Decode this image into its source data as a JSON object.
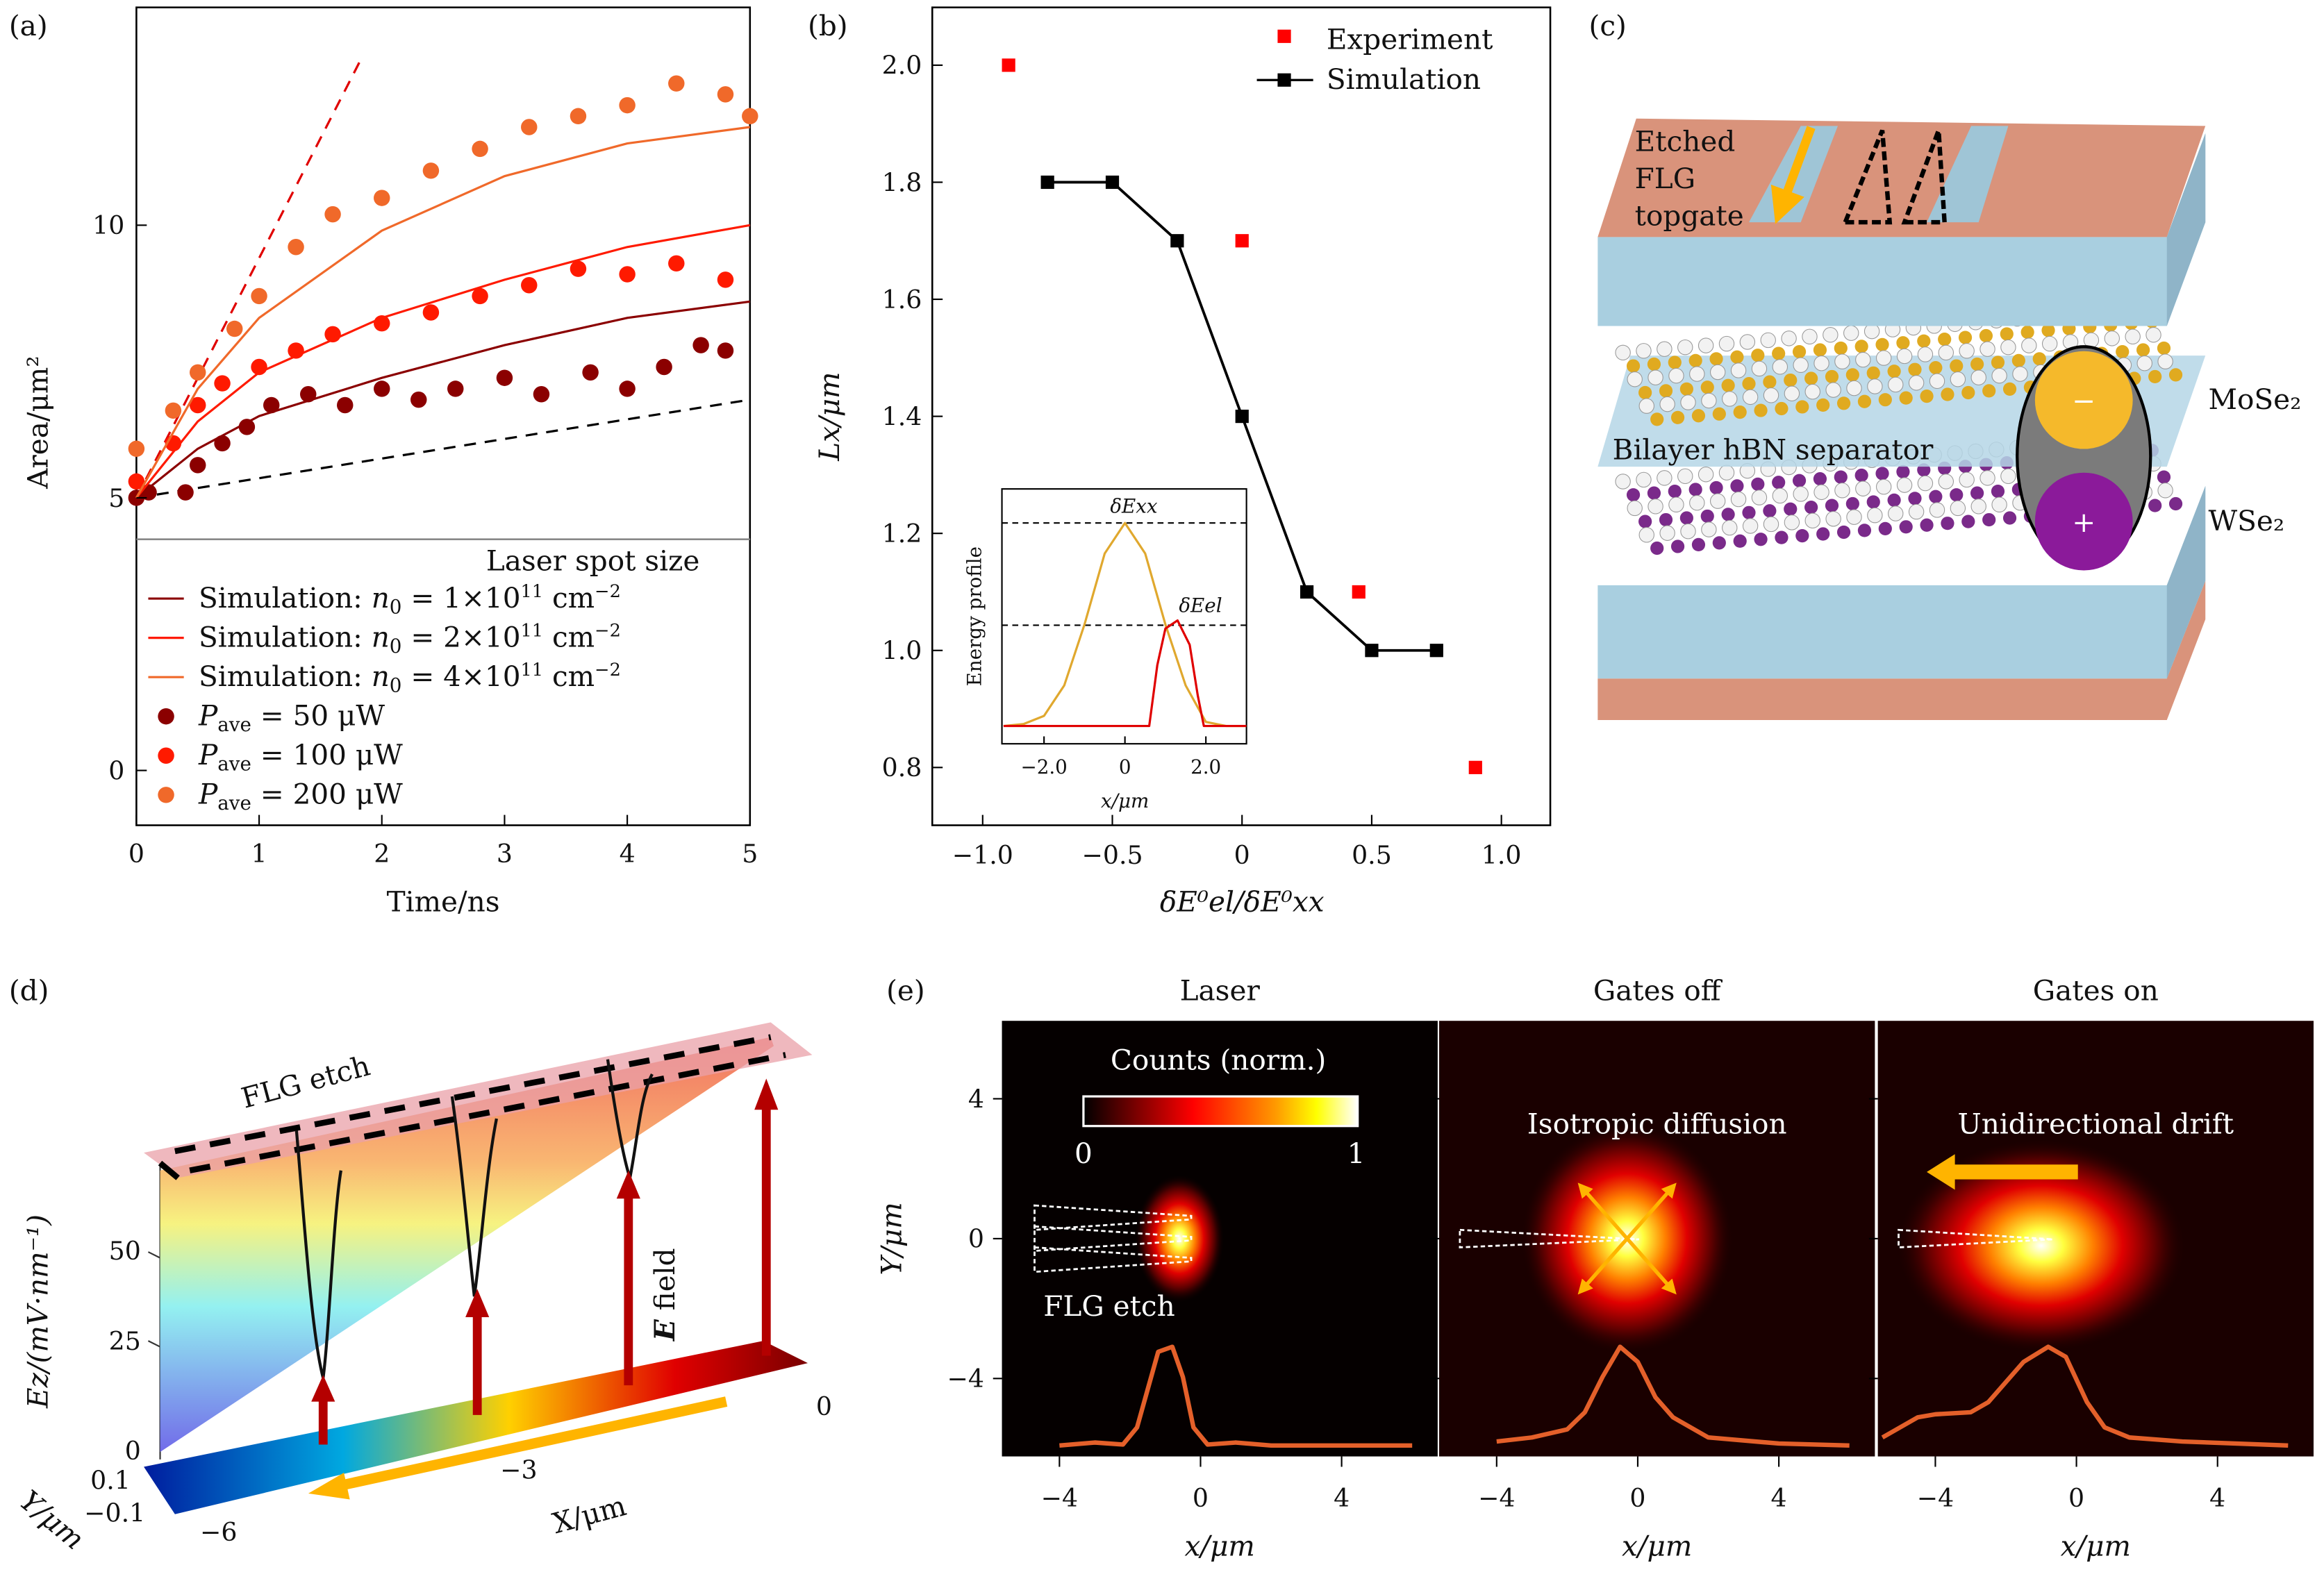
{
  "panels": {
    "a": "(a)",
    "b": "(b)",
    "c": "(c)",
    "d": "(d)",
    "e": "(e)"
  },
  "colors": {
    "p50": "#8b0000",
    "p100": "#ff1a00",
    "p200": "#f0692a",
    "experiment": "#ff0000",
    "simulation": "#000000",
    "inset_exciton": "#e0a82e",
    "inset_electron": "#e00000",
    "arrow": "#ffb400",
    "efield": "#b40000"
  },
  "chart_data": [
    {
      "id": "a",
      "type": "scatter",
      "xlabel": "Time/ns",
      "ylabel": "Area/μm²",
      "xlim": [
        0,
        5
      ],
      "xticks": [
        "0",
        "1",
        "2",
        "3",
        "4",
        "5"
      ],
      "yticks_upper": [
        "5",
        "10"
      ],
      "ytick_lower": "0",
      "legend_title": "Laser spot size",
      "legend_placement": "bottom (separate panel)",
      "legend": [
        {
          "kind": "line",
          "color": "#8b0000",
          "text_pre": "Simulation: ",
          "text_var": "n",
          "text_sub": "0",
          "text_post": " = 1×10",
          "sup": "11",
          "unit": " cm",
          "unit_sup": "−2"
        },
        {
          "kind": "line",
          "color": "#ff1a00",
          "text_pre": "Simulation: ",
          "text_var": "n",
          "text_sub": "0",
          "text_post": " = 2×10",
          "sup": "11",
          "unit": " cm",
          "unit_sup": "−2"
        },
        {
          "kind": "line",
          "color": "#f0692a",
          "text_pre": "Simulation: ",
          "text_var": "n",
          "text_sub": "0",
          "text_post": " = 4×10",
          "sup": "11",
          "unit": " cm",
          "unit_sup": "−2"
        },
        {
          "kind": "dot",
          "color": "#8b0000",
          "text_var": "P",
          "text_sub": "ave",
          "text_post": " = 50 μW"
        },
        {
          "kind": "dot",
          "color": "#ff1a00",
          "text_var": "P",
          "text_sub": "ave",
          "text_post": " = 100 μW"
        },
        {
          "kind": "dot",
          "color": "#f0692a",
          "text_var": "P",
          "text_sub": "ave",
          "text_post": " = 200 μW"
        }
      ],
      "series": [
        {
          "name": "P_ave = 50 μW",
          "color": "#8b0000",
          "points": [
            [
              0,
              5.0
            ],
            [
              0.1,
              5.1
            ],
            [
              0.4,
              5.1
            ],
            [
              0.5,
              5.6
            ],
            [
              0.7,
              6.0
            ],
            [
              0.9,
              6.3
            ],
            [
              1.1,
              6.7
            ],
            [
              1.4,
              6.9
            ],
            [
              1.7,
              6.7
            ],
            [
              2.0,
              7.0
            ],
            [
              2.3,
              6.8
            ],
            [
              2.6,
              7.0
            ],
            [
              3.0,
              7.2
            ],
            [
              3.3,
              6.9
            ],
            [
              3.7,
              7.3
            ],
            [
              4.0,
              7.0
            ],
            [
              4.3,
              7.4
            ],
            [
              4.6,
              7.8
            ],
            [
              4.8,
              7.7
            ]
          ]
        },
        {
          "name": "P_ave = 100 μW",
          "color": "#ff1a00",
          "points": [
            [
              0,
              5.3
            ],
            [
              0.3,
              6.0
            ],
            [
              0.5,
              6.7
            ],
            [
              0.7,
              7.1
            ],
            [
              1.0,
              7.4
            ],
            [
              1.3,
              7.7
            ],
            [
              1.6,
              8.0
            ],
            [
              2.0,
              8.2
            ],
            [
              2.4,
              8.4
            ],
            [
              2.8,
              8.7
            ],
            [
              3.2,
              8.9
            ],
            [
              3.6,
              9.2
            ],
            [
              4.0,
              9.1
            ],
            [
              4.4,
              9.3
            ],
            [
              4.8,
              9.0
            ]
          ]
        },
        {
          "name": "P_ave = 200 μW",
          "color": "#f0692a",
          "points": [
            [
              0,
              5.9
            ],
            [
              0.3,
              6.6
            ],
            [
              0.5,
              7.3
            ],
            [
              0.8,
              8.1
            ],
            [
              1.0,
              8.7
            ],
            [
              1.3,
              9.6
            ],
            [
              1.6,
              10.2
            ],
            [
              2.0,
              10.5
            ],
            [
              2.4,
              11.0
            ],
            [
              2.8,
              11.4
            ],
            [
              3.2,
              11.8
            ],
            [
              3.6,
              12.0
            ],
            [
              4.0,
              12.2
            ],
            [
              4.4,
              12.6
            ],
            [
              4.8,
              12.4
            ],
            [
              5.0,
              12.0
            ]
          ]
        }
      ],
      "curves": [
        {
          "name": "Simulation n0=1e11",
          "color": "#8b0000",
          "points": [
            [
              0,
              5
            ],
            [
              0.5,
              5.9
            ],
            [
              1,
              6.5
            ],
            [
              2,
              7.2
            ],
            [
              3,
              7.8
            ],
            [
              4,
              8.3
            ],
            [
              5,
              8.6
            ]
          ]
        },
        {
          "name": "Simulation n0=2e11",
          "color": "#ff1a00",
          "points": [
            [
              0,
              5
            ],
            [
              0.5,
              6.4
            ],
            [
              1,
              7.3
            ],
            [
              2,
              8.3
            ],
            [
              3,
              9.0
            ],
            [
              4,
              9.6
            ],
            [
              5,
              10.0
            ]
          ]
        },
        {
          "name": "Simulation n0=4e11",
          "color": "#f0692a",
          "points": [
            [
              0,
              5
            ],
            [
              0.5,
              7.0
            ],
            [
              1,
              8.3
            ],
            [
              2,
              9.9
            ],
            [
              3,
              10.9
            ],
            [
              4,
              11.5
            ],
            [
              5,
              11.8
            ]
          ]
        }
      ],
      "dashed": [
        {
          "color": "#e00000",
          "points": [
            [
              0,
              5
            ],
            [
              1.82,
              13.0
            ]
          ]
        },
        {
          "color": "#000000",
          "points": [
            [
              0,
              5
            ],
            [
              5,
              6.8
            ]
          ]
        }
      ]
    },
    {
      "id": "b",
      "type": "line",
      "xlabel": "δE⁰el/δE⁰xx",
      "ylabel": "Lx/μm",
      "xlim": [
        -1.2,
        1.2
      ],
      "ylim": [
        0.7,
        2.1
      ],
      "xticks": [
        -1.0,
        -0.5,
        0,
        0.5,
        1.0
      ],
      "xtick_labels": [
        "−1.0",
        "−0.5",
        "0",
        "0.5",
        "1.0"
      ],
      "yticks": [
        0.8,
        1.0,
        1.2,
        1.4,
        1.6,
        1.8,
        2.0
      ],
      "ytick_labels": [
        "0.8",
        "1.0",
        "1.2",
        "1.4",
        "1.6",
        "1.8",
        "2.0"
      ],
      "legend_placement": "top-right",
      "series": [
        {
          "name": "Experiment",
          "color": "#ff0000",
          "marker": "square",
          "line": false,
          "x": [
            -0.9,
            0,
            0.45,
            0.9
          ],
          "y": [
            2.0,
            1.7,
            1.1,
            0.8
          ]
        },
        {
          "name": "Simulation",
          "color": "#000000",
          "marker": "square",
          "line": true,
          "x": [
            -0.75,
            -0.5,
            -0.25,
            0,
            0.25,
            0.5,
            0.75
          ],
          "y": [
            1.8,
            1.8,
            1.7,
            1.4,
            1.1,
            1.0,
            1.0
          ]
        }
      ]
    },
    {
      "id": "b-inset",
      "type": "line",
      "xlabel": "x/μm",
      "ylabel": "Energy profile",
      "xticks": [
        "−2.0",
        "0",
        "2.0"
      ],
      "annotations": [
        "δExx",
        "δEel"
      ],
      "series": [
        {
          "name": "exciton",
          "color": "#e0a82e",
          "x": [
            -3,
            -2.5,
            -2,
            -1.5,
            -1,
            -0.5,
            0,
            0.5,
            1,
            1.5,
            2,
            2.5,
            3
          ],
          "y": [
            0,
            0.01,
            0.05,
            0.2,
            0.5,
            0.85,
            1.0,
            0.85,
            0.5,
            0.2,
            0.02,
            0,
            0
          ]
        },
        {
          "name": "electron",
          "color": "#e00000",
          "x": [
            -3,
            0.6,
            0.8,
            1.0,
            1.3,
            1.6,
            1.8,
            1.95,
            3
          ],
          "y": [
            0,
            0,
            0.3,
            0.48,
            0.52,
            0.4,
            0.15,
            0,
            0
          ]
        }
      ]
    },
    {
      "id": "d",
      "type": "surface",
      "zlabel": "Ez/(mV·nm⁻¹)",
      "xlabel": "X/μm",
      "ylabel": "Y/μm",
      "zticks": [
        "0",
        "25",
        "50"
      ],
      "xticks": [
        "−6",
        "−3",
        "0"
      ],
      "yticks": [
        "0.1",
        "−0.1"
      ],
      "annotations": {
        "etch": "FLG etch",
        "efield_bold": "E",
        "efield_rest": " field"
      }
    },
    {
      "id": "e",
      "type": "heatmap",
      "panels": [
        {
          "title": "Laser",
          "center": [
            -0.6,
            0
          ],
          "spread": [
            0.9,
            1.4
          ],
          "note": "FLG etch",
          "profile": [
            [
              -6,
              0.02
            ],
            [
              -4,
              0.02
            ],
            [
              -3,
              0.05
            ],
            [
              -2.2,
              0.03
            ],
            [
              -1.8,
              0.2
            ],
            [
              -1.2,
              0.95
            ],
            [
              -0.8,
              1.0
            ],
            [
              -0.5,
              0.7
            ],
            [
              -0.2,
              0.2
            ],
            [
              0.2,
              0.03
            ],
            [
              1,
              0.05
            ],
            [
              2,
              0.02
            ],
            [
              6,
              0.02
            ]
          ]
        },
        {
          "title": "Gates off",
          "center": [
            -0.3,
            0
          ],
          "spread": [
            2.2,
            2.6
          ],
          "note": "Isotropic diffusion",
          "profile": [
            [
              -6,
              0.02
            ],
            [
              -4,
              0.06
            ],
            [
              -3,
              0.1
            ],
            [
              -2,
              0.18
            ],
            [
              -1.5,
              0.35
            ],
            [
              -1,
              0.7
            ],
            [
              -0.5,
              1.0
            ],
            [
              0,
              0.85
            ],
            [
              0.5,
              0.5
            ],
            [
              1,
              0.3
            ],
            [
              2,
              0.1
            ],
            [
              4,
              0.04
            ],
            [
              6,
              0.02
            ]
          ]
        },
        {
          "title": "Gates on",
          "center": [
            -1.0,
            -0.2
          ],
          "spread": [
            3.0,
            2.4
          ],
          "note": "Unidirectional drift",
          "profile": [
            [
              -6,
              0.04
            ],
            [
              -5.5,
              0.1
            ],
            [
              -4.5,
              0.3
            ],
            [
              -4,
              0.33
            ],
            [
              -3,
              0.35
            ],
            [
              -2.5,
              0.45
            ],
            [
              -1.5,
              0.85
            ],
            [
              -0.8,
              1.0
            ],
            [
              -0.3,
              0.9
            ],
            [
              0.3,
              0.45
            ],
            [
              0.8,
              0.2
            ],
            [
              1.5,
              0.1
            ],
            [
              3,
              0.06
            ],
            [
              6,
              0.02
            ]
          ]
        }
      ],
      "xlabel": "x/μm",
      "ylabel": "Y/μm",
      "xticks": [
        -4,
        0,
        4
      ],
      "xtick_labels": [
        "−4",
        "0",
        "4"
      ],
      "yticks": [
        4,
        0,
        -4
      ],
      "ytick_labels": [
        "4",
        "0",
        "−4"
      ],
      "colorbar": {
        "label": "Counts (norm.)",
        "min": "0",
        "max": "1"
      }
    }
  ],
  "panel_c": {
    "gate_label": [
      "Etched",
      "FLG",
      "topgate"
    ],
    "mose2": "MoSe₂",
    "wse2": "WSe₂",
    "separator": "Bilayer hBN separator",
    "minus": "−",
    "plus": "+"
  }
}
